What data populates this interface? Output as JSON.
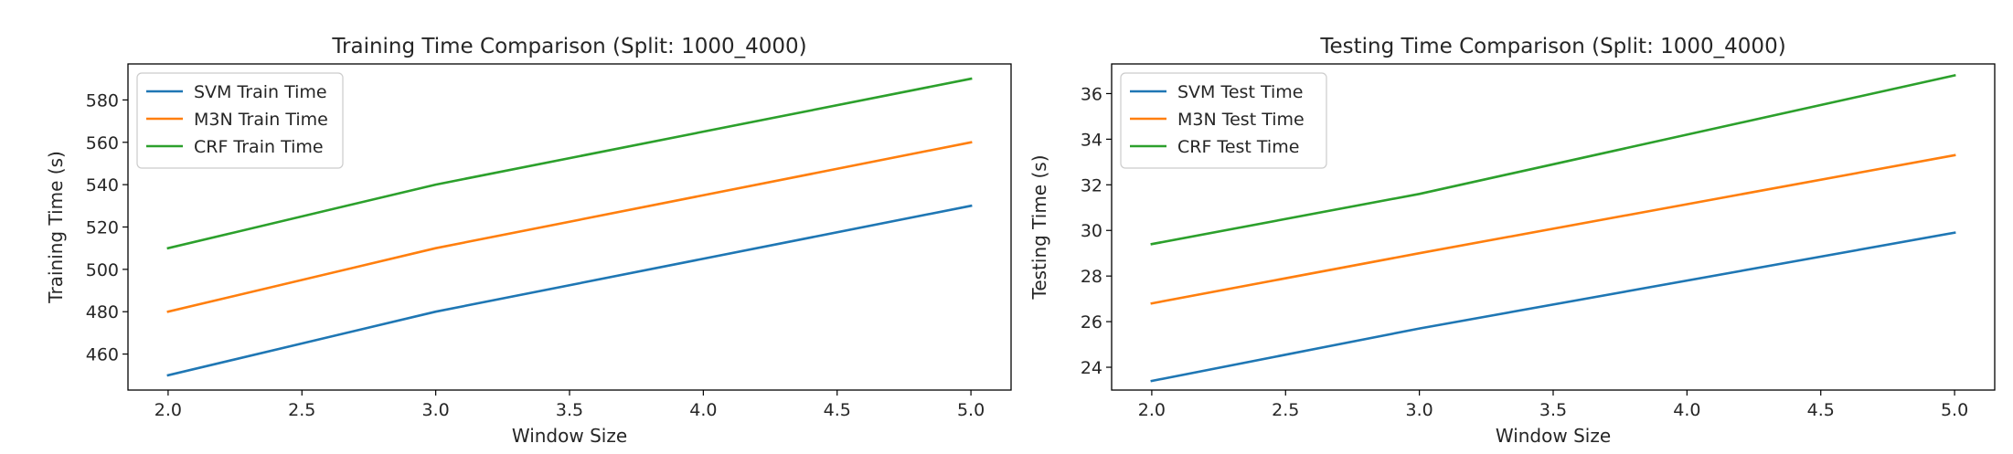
{
  "chart_data": [
    {
      "type": "line",
      "title": "Training Time Comparison (Split: 1000_4000)",
      "xlabel": "Window Size",
      "ylabel": "Training Time (s)",
      "x": [
        2.0,
        3.0,
        5.0
      ],
      "xlim": [
        1.85,
        5.15
      ],
      "ylim": [
        443,
        597
      ],
      "xticks": [
        2.0,
        2.5,
        3.0,
        3.5,
        4.0,
        4.5,
        5.0
      ],
      "xtick_labels": [
        "2.0",
        "2.5",
        "3.0",
        "3.5",
        "4.0",
        "4.5",
        "5.0"
      ],
      "yticks": [
        460,
        480,
        500,
        520,
        540,
        560,
        580
      ],
      "ytick_labels": [
        "460",
        "480",
        "500",
        "520",
        "540",
        "560",
        "580"
      ],
      "grid": false,
      "legend_position": "top-left",
      "series": [
        {
          "name": "SVM Train Time",
          "color": "#1f77b4",
          "values": [
            450,
            480,
            530
          ]
        },
        {
          "name": "M3N Train Time",
          "color": "#ff7f0e",
          "values": [
            480,
            510,
            560
          ]
        },
        {
          "name": "CRF Train Time",
          "color": "#2ca02c",
          "values": [
            510,
            540,
            590
          ]
        }
      ]
    },
    {
      "type": "line",
      "title": "Testing Time Comparison (Split: 1000_4000)",
      "xlabel": "Window Size",
      "ylabel": "Testing Time (s)",
      "x": [
        2.0,
        3.0,
        5.0
      ],
      "xlim": [
        1.85,
        5.15
      ],
      "ylim": [
        23.0,
        37.3
      ],
      "xticks": [
        2.0,
        2.5,
        3.0,
        3.5,
        4.0,
        4.5,
        5.0
      ],
      "xtick_labels": [
        "2.0",
        "2.5",
        "3.0",
        "3.5",
        "4.0",
        "4.5",
        "5.0"
      ],
      "yticks": [
        24,
        26,
        28,
        30,
        32,
        34,
        36
      ],
      "ytick_labels": [
        "24",
        "26",
        "28",
        "30",
        "32",
        "34",
        "36"
      ],
      "grid": false,
      "legend_position": "top-left",
      "series": [
        {
          "name": "SVM Test Time",
          "color": "#1f77b4",
          "values": [
            23.4,
            25.7,
            29.9
          ]
        },
        {
          "name": "M3N Test Time",
          "color": "#ff7f0e",
          "values": [
            26.8,
            29.0,
            33.3
          ]
        },
        {
          "name": "CRF Test Time",
          "color": "#2ca02c",
          "values": [
            29.4,
            31.6,
            36.8
          ]
        }
      ]
    }
  ]
}
